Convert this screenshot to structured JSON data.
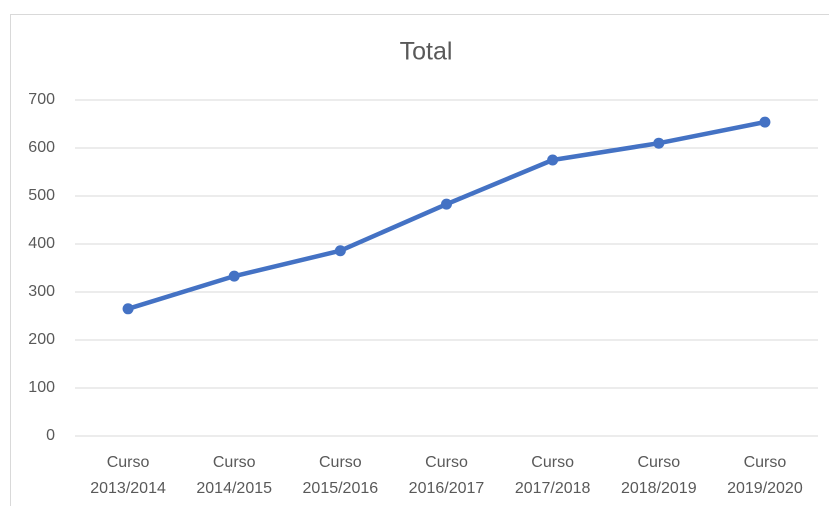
{
  "chart_data": {
    "type": "line",
    "title": "Total",
    "categories": [
      "Curso 2013/2014",
      "Curso 2014/2015",
      "Curso 2015/2016",
      "Curso 2016/2017",
      "Curso 2017/2018",
      "Curso 2018/2019",
      "Curso 2019/2020"
    ],
    "series": [
      {
        "name": "Total",
        "color": "#4472c4",
        "values": [
          265,
          333,
          386,
          483,
          575,
          610,
          654
        ]
      }
    ],
    "ylim": [
      0,
      700
    ],
    "yticks": [
      0,
      100,
      200,
      300,
      400,
      500,
      600,
      700
    ],
    "grid": true
  }
}
